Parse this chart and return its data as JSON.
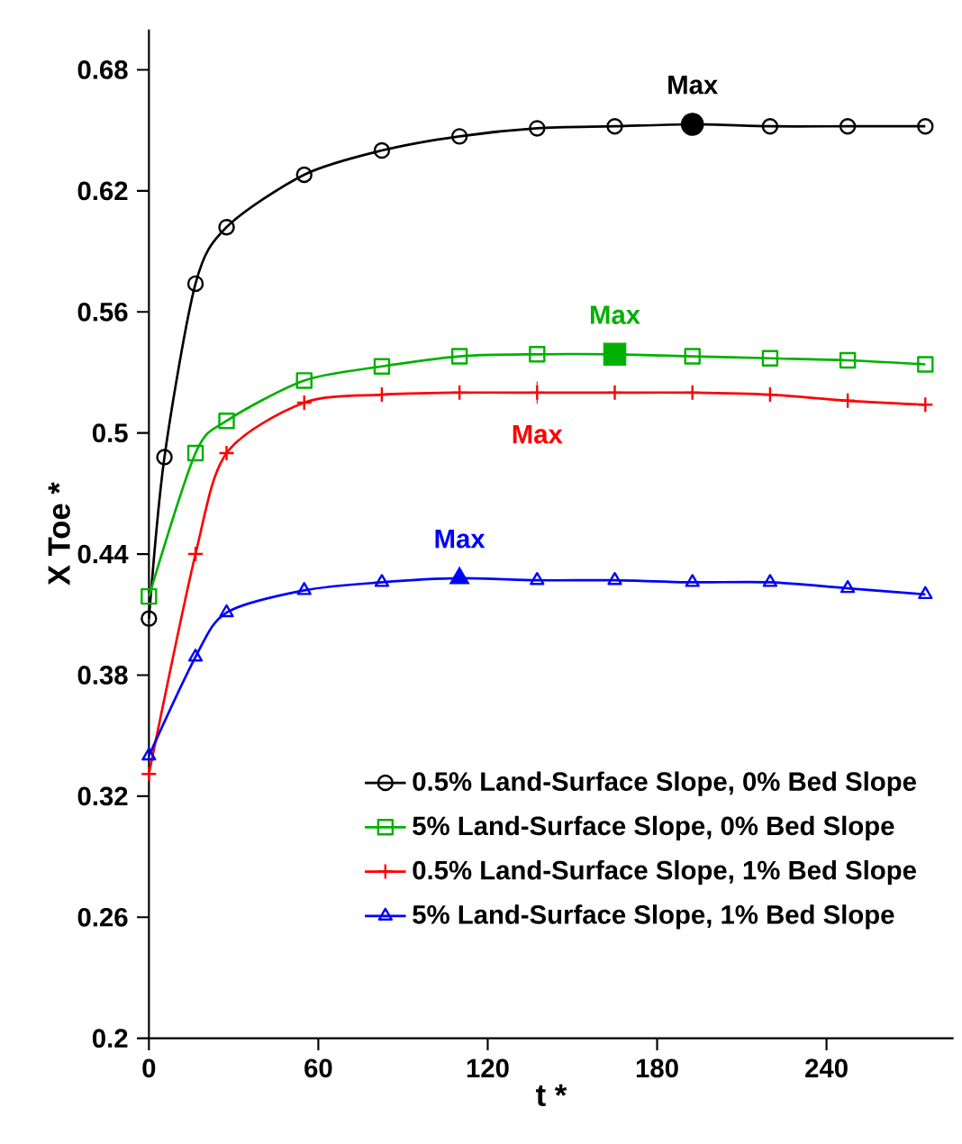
{
  "chart_data": {
    "type": "line",
    "xlabel": "t *",
    "ylabel": "X Toe *",
    "xlim": [
      0,
      285
    ],
    "ylim": [
      0.2,
      0.7
    ],
    "xticks": [
      0,
      60,
      120,
      180,
      240
    ],
    "yticks": [
      {
        "value": 0.2,
        "label": "0.2"
      },
      0.26,
      0.32,
      0.38,
      0.44,
      {
        "value": 0.5,
        "label": "0.5"
      },
      0.56,
      0.62,
      0.68
    ],
    "grid": false,
    "legend": "bottom right",
    "line_style": "solid",
    "series": [
      {
        "name": "0.5% Land-Surface Slope, 0% Bed Slope",
        "color": "#000000",
        "marker": "circle",
        "x": [
          0,
          5.5,
          16.5,
          27.5,
          55,
          82.5,
          110,
          137.5,
          165,
          192.5,
          220,
          247.5,
          275
        ],
        "values": [
          0.408,
          0.488,
          0.574,
          0.602,
          0.628,
          0.64,
          0.647,
          0.651,
          0.652,
          0.653,
          0.652,
          0.652,
          0.652
        ]
      },
      {
        "name": "5% Land-Surface Slope, 0% Bed Slope",
        "color": "#00b000",
        "marker": "square",
        "x": [
          0,
          16.5,
          27.5,
          55,
          82.5,
          110,
          137.5,
          165,
          192.5,
          220,
          247.5,
          275
        ],
        "values": [
          0.419,
          0.49,
          0.506,
          0.526,
          0.533,
          0.538,
          0.539,
          0.539,
          0.538,
          0.537,
          0.536,
          0.534
        ]
      },
      {
        "name": "0.5% Land-Surface Slope, 1% Bed Slope",
        "color": "#ff0000",
        "marker": "cross",
        "x": [
          0,
          16.5,
          27.5,
          55,
          82.5,
          110,
          137.5,
          165,
          192.5,
          220,
          247.5,
          275
        ],
        "values": [
          0.331,
          0.44,
          0.49,
          0.515,
          0.519,
          0.52,
          0.52,
          0.52,
          0.52,
          0.519,
          0.516,
          0.514
        ]
      },
      {
        "name": "5% Land-Surface Slope, 1% Bed Slope",
        "color": "#0000ff",
        "marker": "triangle",
        "x": [
          0,
          16.5,
          27.5,
          55,
          82.5,
          110,
          137.5,
          165,
          192.5,
          220,
          247.5,
          275
        ],
        "values": [
          0.34,
          0.389,
          0.411,
          0.422,
          0.426,
          0.428,
          0.427,
          0.427,
          0.426,
          0.426,
          0.423,
          0.42
        ]
      }
    ],
    "annotations": [
      {
        "text": "Max",
        "x": 192.5,
        "y": 0.653
      },
      {
        "text": "Max",
        "x": 165,
        "y": 0.539
      },
      {
        "text": "Max",
        "x": 137.5,
        "y": 0.52
      },
      {
        "text": "Max",
        "x": 110,
        "y": 0.428
      }
    ]
  }
}
